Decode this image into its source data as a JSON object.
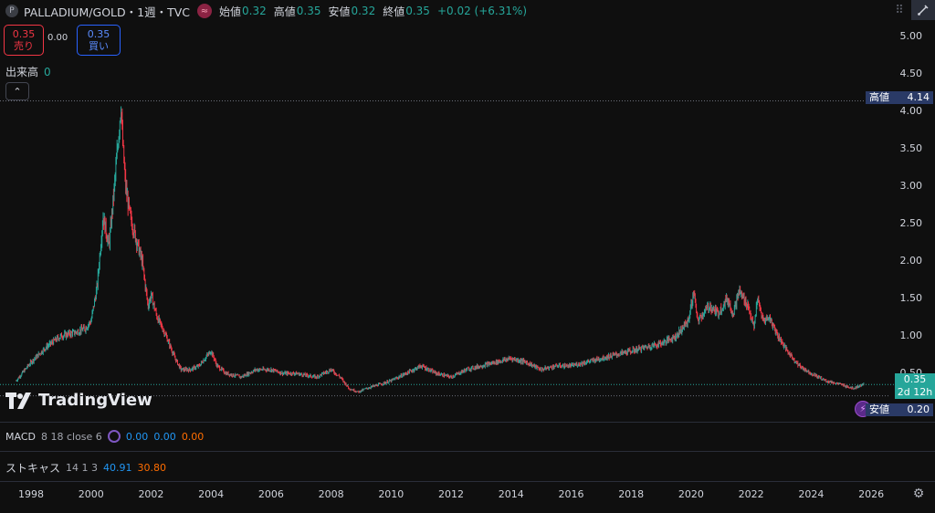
{
  "header": {
    "symbol_icon": "P",
    "title": "PALLADIUM/GOLD・1週・TVC",
    "approx_icon": "≈",
    "open_label": "始値",
    "open_value": "0.32",
    "high_label": "高値",
    "high_value": "0.35",
    "low_label": "安値",
    "low_value": "0.32",
    "close_label": "終値",
    "close_value": "0.35",
    "change": "+0.02 (+6.31%)"
  },
  "trade": {
    "sell_price": "0.35",
    "sell_label": "売り",
    "spread": "0.00",
    "buy_price": "0.35",
    "buy_label": "買い"
  },
  "volume": {
    "label": "出来高",
    "value": "0"
  },
  "collapse_icon": "chevron-up-icon",
  "y_axis": {
    "ticks": [
      "5.00",
      "4.50",
      "4.00",
      "3.50",
      "3.00",
      "2.50",
      "2.00",
      "1.50",
      "1.00",
      "0.50"
    ],
    "high_label": "高値",
    "high_value": "4.14",
    "last_value": "0.35",
    "countdown": "2d 12h",
    "low_label": "安値",
    "low_value": "0.20"
  },
  "x_axis": {
    "ticks": [
      "1998",
      "2000",
      "2002",
      "2004",
      "2006",
      "2008",
      "2010",
      "2012",
      "2014",
      "2016",
      "2018",
      "2020",
      "2022",
      "2024",
      "2026"
    ]
  },
  "macd": {
    "name": "MACD",
    "params": "8 18 close 6",
    "v1": "0.00",
    "v2": "0.00",
    "v3": "0.00"
  },
  "stoch": {
    "name": "ストキャス",
    "params": "14 1 3",
    "v1": "40.91",
    "v2": "30.80"
  },
  "logo_text": "TradingView",
  "colors": {
    "up": "#26a69a",
    "down": "#f23645",
    "accent": "#2962ff",
    "bg": "#0f0f0f"
  },
  "chart_data": {
    "type": "candlestick",
    "ylim": [
      0.0,
      5.0
    ],
    "x": [
      1997.5,
      1998.0,
      1998.5,
      1999.0,
      1999.5,
      1999.8,
      2000.0,
      2000.2,
      2000.4,
      2000.6,
      2000.8,
      2000.9,
      2001.0,
      2001.05,
      2001.15,
      2001.3,
      2001.5,
      2001.7,
      2001.9,
      2002.0,
      2002.2,
      2002.5,
      2002.8,
      2003.0,
      2003.3,
      2003.6,
      2004.0,
      2004.2,
      2004.5,
      2005.0,
      2005.5,
      2006.0,
      2006.4,
      2006.8,
      2007.5,
      2008.0,
      2008.3,
      2008.6,
      2008.9,
      2009.2,
      2009.6,
      2010.0,
      2010.5,
      2011.0,
      2011.5,
      2012.0,
      2012.5,
      2013.0,
      2013.5,
      2014.0,
      2014.5,
      2015.0,
      2015.5,
      2016.0,
      2016.5,
      2017.0,
      2017.5,
      2018.0,
      2018.5,
      2019.0,
      2019.5,
      2019.9,
      2020.1,
      2020.2,
      2020.4,
      2020.6,
      2020.9,
      2021.2,
      2021.4,
      2021.6,
      2021.9,
      2022.1,
      2022.2,
      2022.4,
      2022.6,
      2022.9,
      2023.2,
      2023.6,
      2024.0,
      2024.5,
      2025.0,
      2025.4,
      2025.75
    ],
    "y": [
      0.4,
      0.65,
      0.85,
      1.0,
      1.05,
      1.1,
      1.2,
      1.65,
      2.6,
      2.2,
      3.1,
      3.6,
      4.1,
      3.6,
      3.0,
      2.6,
      2.3,
      2.0,
      1.4,
      1.55,
      1.25,
      1.0,
      0.7,
      0.55,
      0.55,
      0.6,
      0.8,
      0.6,
      0.5,
      0.45,
      0.55,
      0.55,
      0.5,
      0.5,
      0.45,
      0.55,
      0.45,
      0.3,
      0.25,
      0.3,
      0.35,
      0.4,
      0.5,
      0.6,
      0.5,
      0.45,
      0.55,
      0.6,
      0.65,
      0.7,
      0.65,
      0.55,
      0.6,
      0.6,
      0.65,
      0.7,
      0.75,
      0.8,
      0.85,
      0.9,
      1.0,
      1.2,
      1.6,
      1.2,
      1.3,
      1.4,
      1.3,
      1.5,
      1.3,
      1.6,
      1.4,
      1.1,
      1.5,
      1.2,
      1.25,
      1.0,
      0.8,
      0.6,
      0.5,
      0.4,
      0.35,
      0.3,
      0.35
    ],
    "high": 4.14,
    "low": 0.2,
    "last": 0.35
  }
}
